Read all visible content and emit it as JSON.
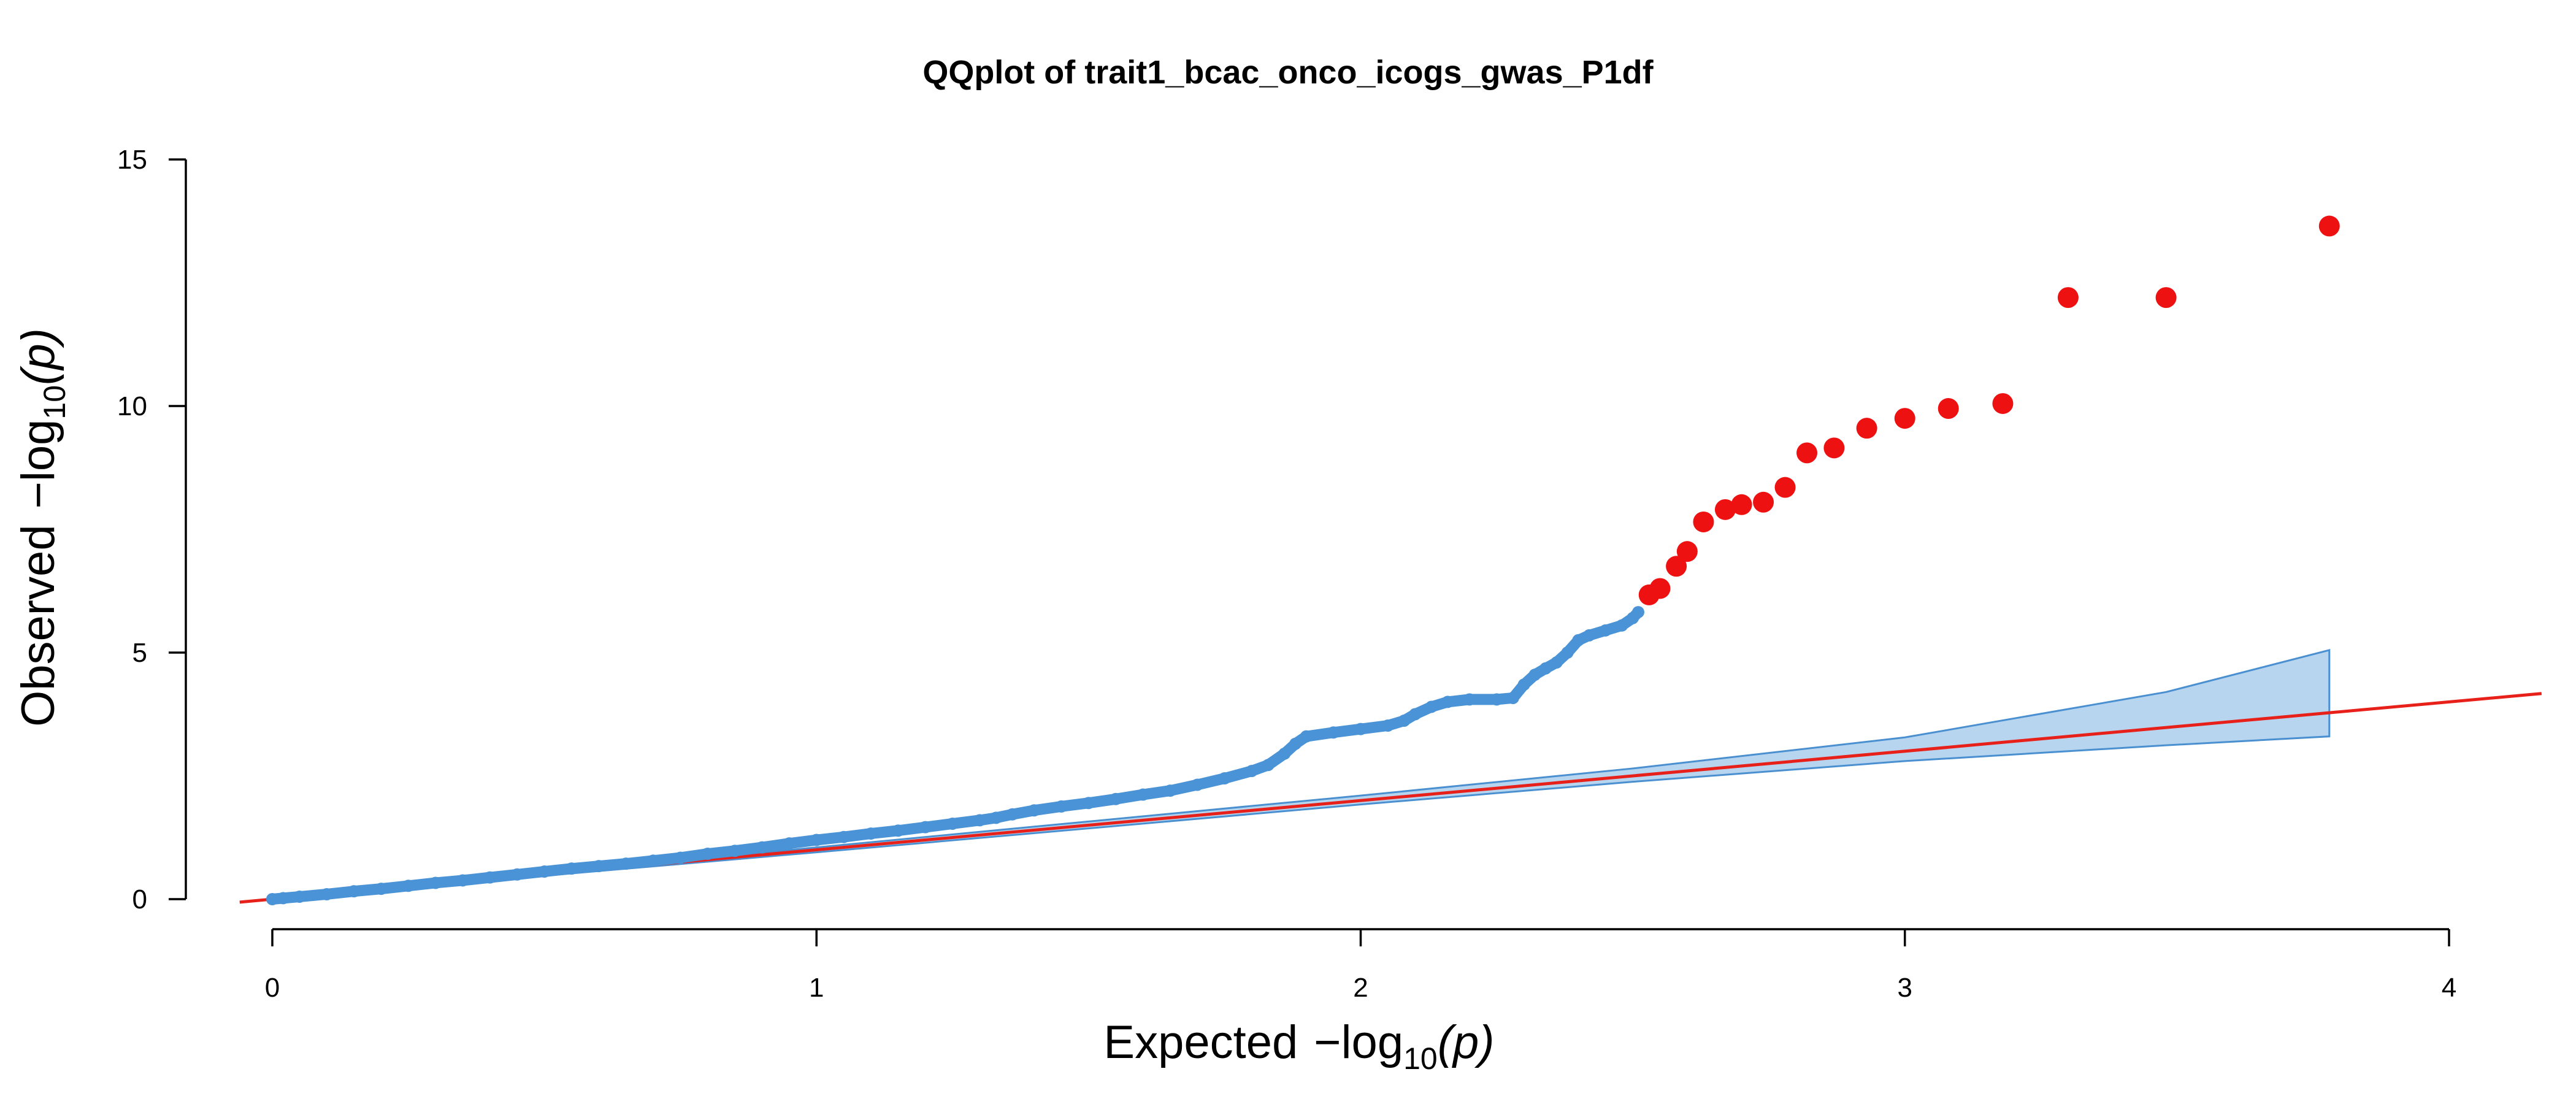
{
  "chart_data": {
    "type": "scatter",
    "title": "QQplot of trait1_bcac_onco_icogs_gwas_P1df",
    "xlabel": {
      "prefix": "Expected",
      "log_text": "−log",
      "subscript": "10",
      "arg": "(p)"
    },
    "ylabel": {
      "prefix": "Observed",
      "log_text": "−log",
      "subscript": "10",
      "arg": "(p)"
    },
    "xlim": [
      0,
      4
    ],
    "ylim": [
      0,
      15
    ],
    "x_ticks": [
      "0",
      "1",
      "2",
      "3",
      "4"
    ],
    "y_ticks": [
      "0",
      "5",
      "10",
      "15"
    ],
    "grid": false,
    "legend": "none",
    "reference_line": {
      "slope": 1,
      "intercept": 0,
      "color": "#e8201a"
    },
    "confidence_band": {
      "color": "#b7d5ef",
      "edge_color": "#4a90d0",
      "points": [
        {
          "x": 0.0,
          "lower": 0.0,
          "upper": 0.0
        },
        {
          "x": 1.0,
          "lower": 0.95,
          "upper": 1.05
        },
        {
          "x": 2.0,
          "lower": 1.92,
          "upper": 2.1
        },
        {
          "x": 2.5,
          "lower": 2.38,
          "upper": 2.65
        },
        {
          "x": 3.0,
          "lower": 2.8,
          "upper": 3.28
        },
        {
          "x": 3.48,
          "lower": 3.12,
          "upper": 4.2
        },
        {
          "x": 3.78,
          "lower": 3.3,
          "upper": 5.05
        }
      ]
    },
    "series": [
      {
        "color": "#4a93d6",
        "size": "small",
        "points": [
          [
            0.0,
            0.0
          ],
          [
            0.02,
            0.02
          ],
          [
            0.05,
            0.05
          ],
          [
            0.1,
            0.1
          ],
          [
            0.15,
            0.16
          ],
          [
            0.2,
            0.21
          ],
          [
            0.25,
            0.27
          ],
          [
            0.3,
            0.33
          ],
          [
            0.35,
            0.38
          ],
          [
            0.4,
            0.44
          ],
          [
            0.45,
            0.5
          ],
          [
            0.5,
            0.56
          ],
          [
            0.55,
            0.62
          ],
          [
            0.6,
            0.67
          ],
          [
            0.65,
            0.72
          ],
          [
            0.7,
            0.78
          ],
          [
            0.75,
            0.84
          ],
          [
            0.8,
            0.92
          ],
          [
            0.85,
            0.98
          ],
          [
            0.9,
            1.05
          ],
          [
            0.95,
            1.13
          ],
          [
            1.0,
            1.2
          ],
          [
            1.05,
            1.26
          ],
          [
            1.1,
            1.33
          ],
          [
            1.15,
            1.39
          ],
          [
            1.2,
            1.46
          ],
          [
            1.25,
            1.53
          ],
          [
            1.3,
            1.6
          ],
          [
            1.33,
            1.65
          ],
          [
            1.36,
            1.72
          ],
          [
            1.4,
            1.8
          ],
          [
            1.45,
            1.88
          ],
          [
            1.5,
            1.95
          ],
          [
            1.55,
            2.03
          ],
          [
            1.6,
            2.12
          ],
          [
            1.65,
            2.2
          ],
          [
            1.7,
            2.32
          ],
          [
            1.75,
            2.45
          ],
          [
            1.8,
            2.6
          ],
          [
            1.83,
            2.72
          ],
          [
            1.86,
            2.95
          ],
          [
            1.88,
            3.15
          ],
          [
            1.9,
            3.3
          ],
          [
            1.95,
            3.38
          ],
          [
            2.0,
            3.45
          ],
          [
            2.05,
            3.52
          ],
          [
            2.08,
            3.62
          ],
          [
            2.1,
            3.75
          ],
          [
            2.13,
            3.9
          ],
          [
            2.16,
            4.0
          ],
          [
            2.2,
            4.05
          ],
          [
            2.25,
            4.05
          ],
          [
            2.28,
            4.08
          ],
          [
            2.3,
            4.35
          ],
          [
            2.32,
            4.55
          ],
          [
            2.34,
            4.68
          ],
          [
            2.36,
            4.8
          ],
          [
            2.38,
            5.0
          ],
          [
            2.4,
            5.25
          ],
          [
            2.42,
            5.35
          ],
          [
            2.45,
            5.45
          ],
          [
            2.48,
            5.55
          ],
          [
            2.5,
            5.7
          ],
          [
            2.51,
            5.82
          ]
        ]
      },
      {
        "color": "#ee1111",
        "size": "large",
        "points": [
          [
            2.53,
            6.17
          ],
          [
            2.55,
            6.3
          ],
          [
            2.58,
            6.75
          ],
          [
            2.6,
            7.05
          ],
          [
            2.63,
            7.65
          ],
          [
            2.67,
            7.9
          ],
          [
            2.7,
            8.0
          ],
          [
            2.74,
            8.05
          ],
          [
            2.78,
            8.35
          ],
          [
            2.82,
            9.05
          ],
          [
            2.87,
            9.15
          ],
          [
            2.93,
            9.55
          ],
          [
            3.0,
            9.75
          ],
          [
            3.08,
            9.95
          ],
          [
            3.18,
            10.05
          ],
          [
            3.3,
            12.2
          ],
          [
            3.48,
            12.2
          ],
          [
            3.78,
            13.65
          ]
        ]
      }
    ]
  }
}
